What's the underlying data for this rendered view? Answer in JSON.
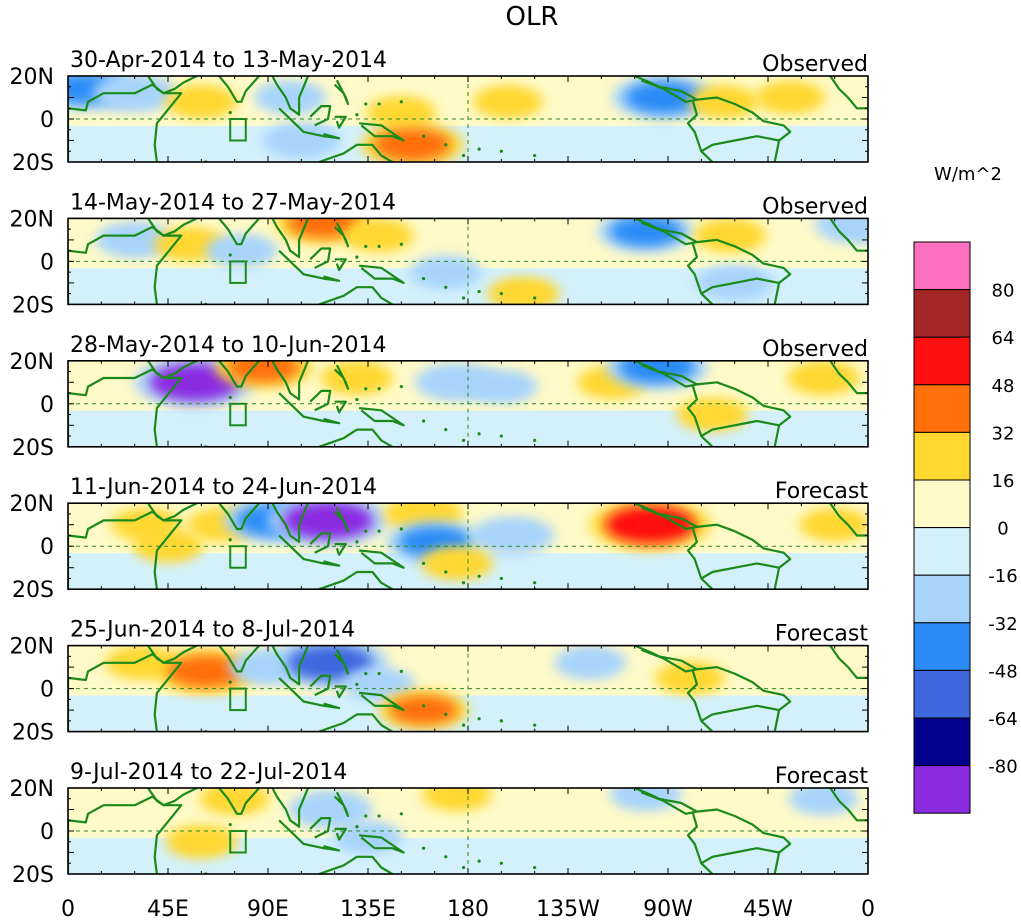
{
  "chart_data": {
    "type": "heatmap",
    "title": "OLR",
    "colorbar": {
      "unit_label": "W/m^2",
      "boundaries": [
        80,
        64,
        48,
        32,
        16,
        0,
        -16,
        -32,
        -48,
        -64,
        -80
      ],
      "colors_top_to_bottom": [
        "#ff6fbf",
        "#a52626",
        "#ff1010",
        "#ff7008",
        "#ffd830",
        "#fffac8",
        "#d4f1fb",
        "#a8d4fc",
        "#2b8bf7",
        "#3f68df",
        "#02008c",
        "#8a2be2"
      ]
    },
    "x_ticks": [
      {
        "lon": 0,
        "label": "0"
      },
      {
        "lon": 45,
        "label": "45E"
      },
      {
        "lon": 90,
        "label": "90E"
      },
      {
        "lon": 135,
        "label": "135E"
      },
      {
        "lon": 180,
        "label": "180"
      },
      {
        "lon": 225,
        "label": "135W"
      },
      {
        "lon": 270,
        "label": "90W"
      },
      {
        "lon": 315,
        "label": "45W"
      },
      {
        "lon": 360,
        "label": "0"
      }
    ],
    "y_ticks": [
      {
        "lat": 20,
        "label": "20N"
      },
      {
        "lat": 0,
        "label": "0"
      },
      {
        "lat": -20,
        "label": "20S"
      }
    ],
    "xlim": [
      0,
      360
    ],
    "ylim": [
      -20,
      20
    ],
    "panels": [
      {
        "period": "30-Apr-2014 to 13-May-2014",
        "kind": "Observed",
        "anomalies": [
          {
            "lon": 8,
            "lat": 14,
            "value": -40
          },
          {
            "lon": 30,
            "lat": 12,
            "value": -30
          },
          {
            "lon": 60,
            "lat": 8,
            "value": 20
          },
          {
            "lon": 100,
            "lat": 10,
            "value": -20
          },
          {
            "lon": 105,
            "lat": -10,
            "value": -25
          },
          {
            "lon": 150,
            "lat": 3,
            "value": 18
          },
          {
            "lon": 155,
            "lat": -12,
            "value": 45
          },
          {
            "lon": 198,
            "lat": 8,
            "value": 18
          },
          {
            "lon": 268,
            "lat": 10,
            "value": -45
          },
          {
            "lon": 295,
            "lat": 8,
            "value": 18
          },
          {
            "lon": 325,
            "lat": 10,
            "value": 18
          }
        ]
      },
      {
        "period": "14-May-2014 to 27-May-2014",
        "kind": "Observed",
        "anomalies": [
          {
            "lon": 30,
            "lat": 10,
            "value": -25
          },
          {
            "lon": 55,
            "lat": 8,
            "value": 20
          },
          {
            "lon": 78,
            "lat": 5,
            "value": -20
          },
          {
            "lon": 115,
            "lat": 18,
            "value": 40
          },
          {
            "lon": 140,
            "lat": 12,
            "value": 18
          },
          {
            "lon": 170,
            "lat": -5,
            "value": -20
          },
          {
            "lon": 205,
            "lat": -15,
            "value": 20
          },
          {
            "lon": 260,
            "lat": 14,
            "value": -40
          },
          {
            "lon": 298,
            "lat": 12,
            "value": 20
          },
          {
            "lon": 300,
            "lat": -10,
            "value": -25
          },
          {
            "lon": 355,
            "lat": 17,
            "value": -30
          }
        ]
      },
      {
        "period": "28-May-2014 to 10-Jun-2014",
        "kind": "Observed",
        "anomalies": [
          {
            "lon": 57,
            "lat": 10,
            "value": -85
          },
          {
            "lon": 88,
            "lat": 17,
            "value": 40
          },
          {
            "lon": 130,
            "lat": 12,
            "value": 20
          },
          {
            "lon": 175,
            "lat": 10,
            "value": -30
          },
          {
            "lon": 195,
            "lat": 8,
            "value": -20
          },
          {
            "lon": 245,
            "lat": 10,
            "value": 18
          },
          {
            "lon": 265,
            "lat": 17,
            "value": -45
          },
          {
            "lon": 290,
            "lat": -5,
            "value": 20
          },
          {
            "lon": 340,
            "lat": 12,
            "value": 20
          }
        ]
      },
      {
        "period": "11-Jun-2014 to 24-Jun-2014",
        "kind": "Forecast",
        "anomalies": [
          {
            "lon": 35,
            "lat": 10,
            "value": 18
          },
          {
            "lon": 45,
            "lat": 0,
            "value": 18
          },
          {
            "lon": 70,
            "lat": 10,
            "value": 20
          },
          {
            "lon": 93,
            "lat": 12,
            "value": -45
          },
          {
            "lon": 117,
            "lat": 12,
            "value": -85
          },
          {
            "lon": 160,
            "lat": 15,
            "value": 25
          },
          {
            "lon": 165,
            "lat": 2,
            "value": -40
          },
          {
            "lon": 200,
            "lat": 5,
            "value": -30
          },
          {
            "lon": 175,
            "lat": -8,
            "value": 20
          },
          {
            "lon": 262,
            "lat": 10,
            "value": 60
          },
          {
            "lon": 345,
            "lat": 10,
            "value": 18
          }
        ]
      },
      {
        "period": "25-Jun-2014 to 8-Jul-2014",
        "kind": "Forecast",
        "anomalies": [
          {
            "lon": 33,
            "lat": 12,
            "value": 20
          },
          {
            "lon": 62,
            "lat": 8,
            "value": 45
          },
          {
            "lon": 90,
            "lat": 10,
            "value": -25
          },
          {
            "lon": 118,
            "lat": 12,
            "value": -55
          },
          {
            "lon": 140,
            "lat": 2,
            "value": -20
          },
          {
            "lon": 160,
            "lat": -10,
            "value": 35
          },
          {
            "lon": 235,
            "lat": 12,
            "value": -20
          },
          {
            "lon": 280,
            "lat": 5,
            "value": 18
          }
        ]
      },
      {
        "period": "9-Jul-2014 to 22-Jul-2014",
        "kind": "Forecast",
        "anomalies": [
          {
            "lon": 60,
            "lat": -5,
            "value": 20
          },
          {
            "lon": 75,
            "lat": 15,
            "value": 18
          },
          {
            "lon": 118,
            "lat": 10,
            "value": -30
          },
          {
            "lon": 135,
            "lat": -3,
            "value": -18
          },
          {
            "lon": 175,
            "lat": 17,
            "value": 18
          },
          {
            "lon": 260,
            "lat": 17,
            "value": -20
          },
          {
            "lon": 340,
            "lat": 15,
            "value": -18
          }
        ]
      }
    ]
  }
}
